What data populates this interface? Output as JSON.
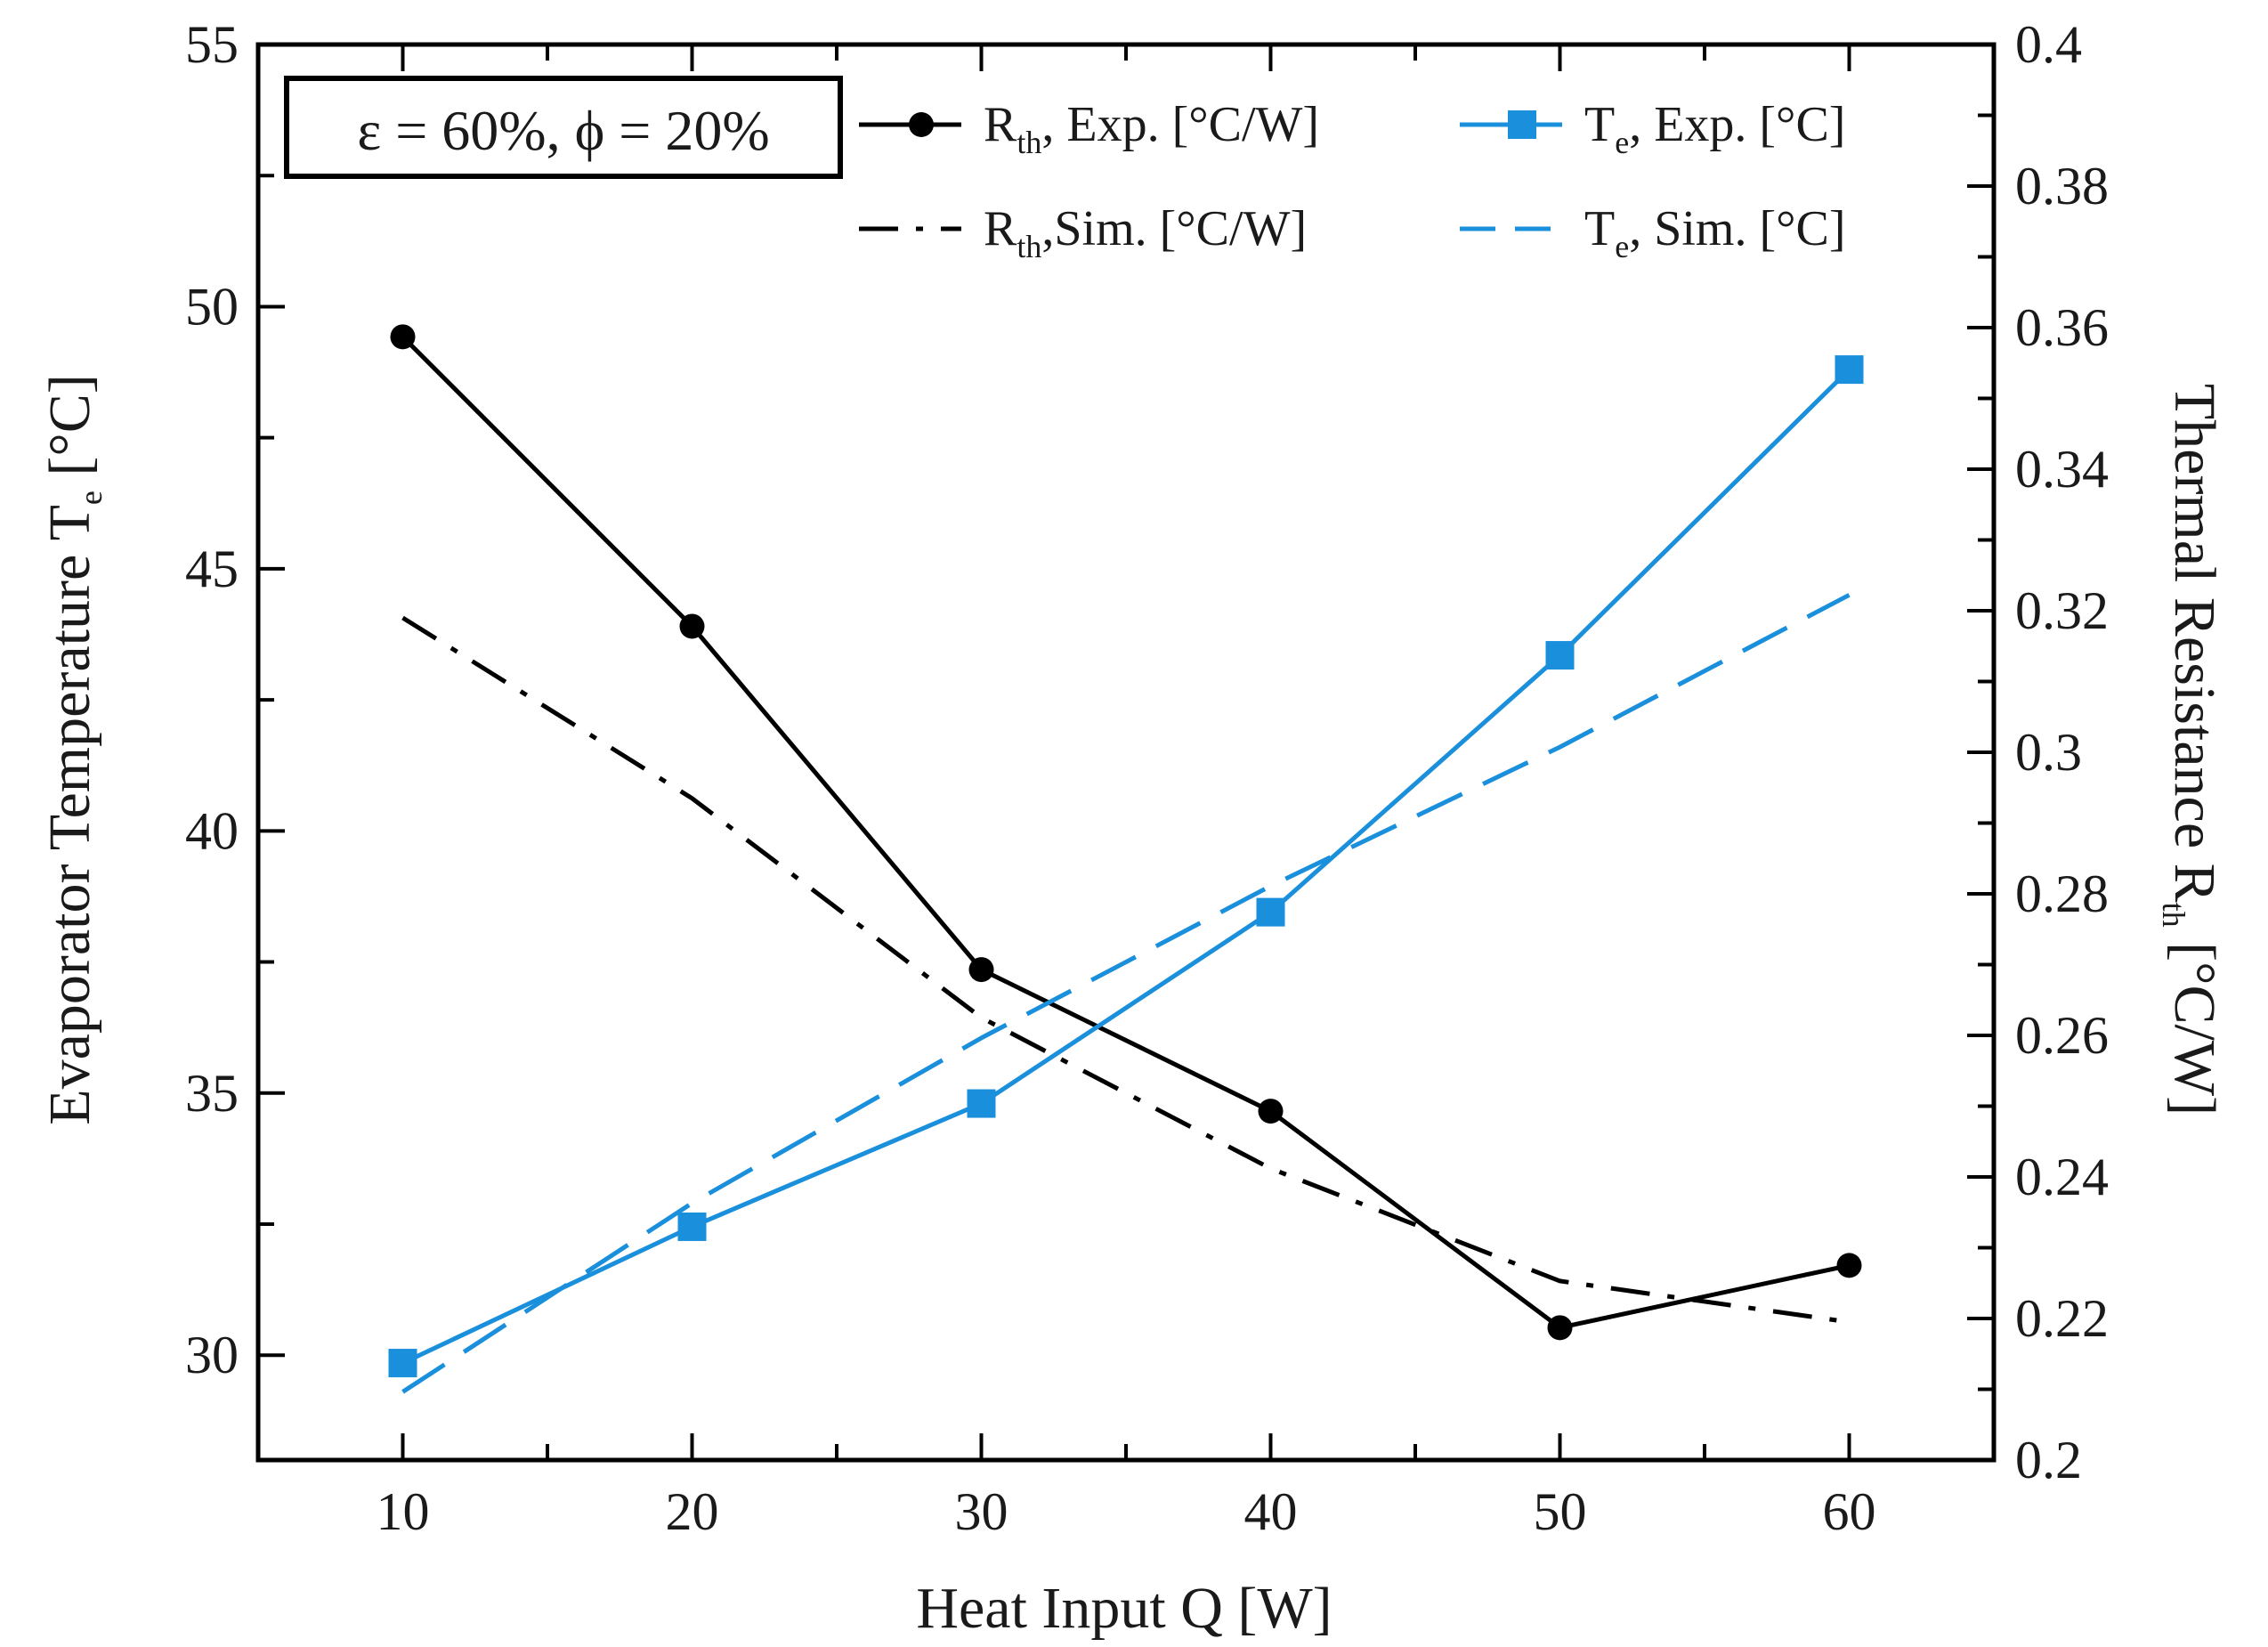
{
  "chart_data": {
    "type": "line",
    "x": [
      10,
      20,
      30,
      40,
      50,
      60
    ],
    "xlim": [
      5,
      65
    ],
    "xticks": [
      10,
      20,
      30,
      40,
      50,
      60
    ],
    "xlabel": "Heat Input Q [W]",
    "ylabel_left": {
      "main": "Evaporator Temperature T",
      "sub": "e",
      "unit": " [°C]"
    },
    "ylim_left": [
      28,
      55
    ],
    "yticks_left": [
      30,
      35,
      40,
      45,
      50,
      55
    ],
    "ylabel_right": {
      "main": "Thermal Resistance R",
      "sub": "th",
      "unit": " [°C/W]"
    },
    "ylim_right": [
      0.2,
      0.4
    ],
    "yticks_right": [
      0.2,
      0.22,
      0.24,
      0.26,
      0.28,
      0.3,
      0.32,
      0.34,
      0.36,
      0.38,
      0.4
    ],
    "annotation": "ε = 60%, ϕ = 20%",
    "grid": false,
    "legend_position": "top",
    "series": [
      {
        "name": "R, Exp. [°C/W]",
        "legend": {
          "pre": "R",
          "sub": "th",
          "post": ", Exp. [°C/W]"
        },
        "axis": "right",
        "values": [
          0.3587,
          0.3178,
          0.2693,
          0.2493,
          0.2187,
          0.2275
        ],
        "color": "#000000",
        "dash": "solid",
        "marker": "circle"
      },
      {
        "name": "R, Sim. [°C/W]",
        "legend": {
          "pre": "R",
          "sub": "th",
          "post": ",Sim. [°C/W]"
        },
        "axis": "right",
        "values": [
          0.319,
          0.2935,
          0.2625,
          0.2412,
          0.2253,
          0.2195
        ],
        "color": "#000000",
        "dash": "dashdot",
        "marker": "none"
      },
      {
        "name": "T, Exp. [°C]",
        "legend": {
          "pre": "T",
          "sub": "e",
          "post": ", Exp. [°C]"
        },
        "axis": "left",
        "values": [
          29.85,
          32.45,
          34.8,
          38.45,
          43.35,
          48.8
        ],
        "color": "#1a8fdc",
        "dash": "solid",
        "marker": "square"
      },
      {
        "name": "T, Sim. [°C]",
        "legend": {
          "pre": "T",
          "sub": "e",
          "post": ", Sim. [°C]"
        },
        "axis": "left",
        "values": [
          29.3,
          32.9,
          36.05,
          38.95,
          41.6,
          44.5
        ],
        "color": "#1a8fdc",
        "dash": "dashed",
        "marker": "none"
      }
    ]
  }
}
